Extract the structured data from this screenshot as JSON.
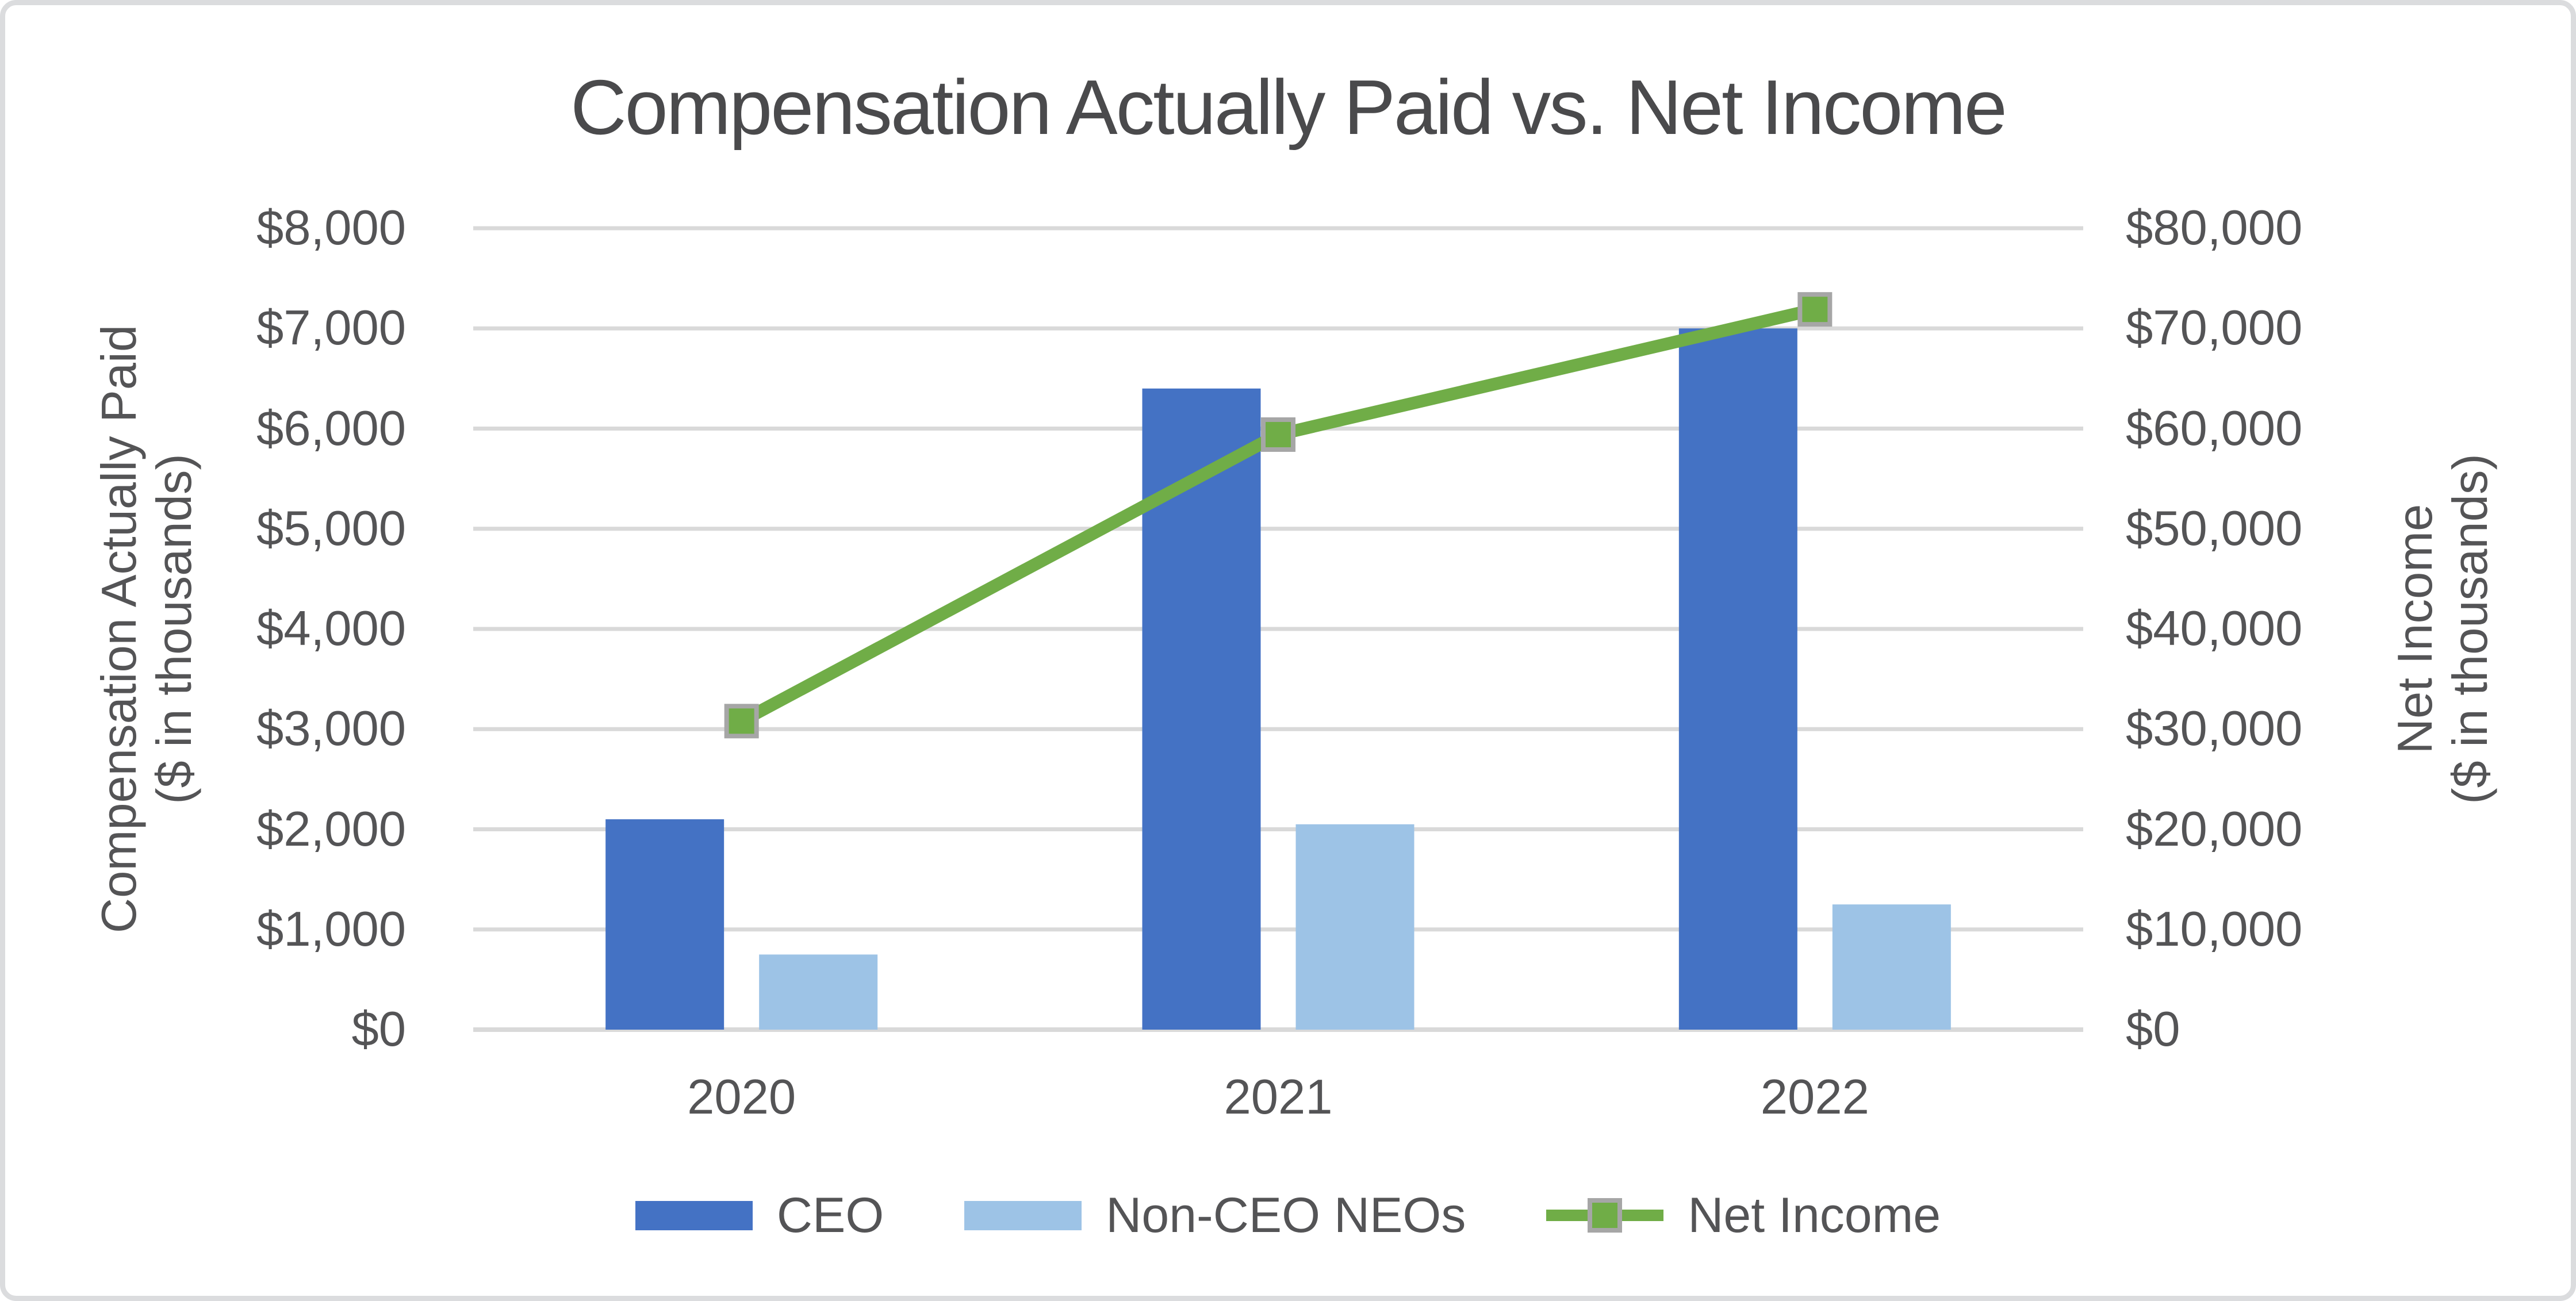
{
  "chart_data": {
    "type": "combo_bar_line",
    "title": "Compensation Actually Paid vs. Net Income",
    "categories": [
      "2020",
      "2021",
      "2022"
    ],
    "series": [
      {
        "name": "CEO",
        "chart": "bar",
        "axis": "left",
        "values": [
          2100,
          6400,
          7000
        ],
        "color": "#4472C4"
      },
      {
        "name": "Non-CEO NEOs",
        "chart": "bar",
        "axis": "left",
        "values": [
          750,
          2050,
          1250
        ],
        "color": "#9DC3E6"
      },
      {
        "name": "Net Income",
        "chart": "line",
        "axis": "right",
        "values": [
          30800,
          59400,
          71900
        ],
        "color": "#70AD47",
        "marker": "square",
        "marker_fill": "#70AD47",
        "marker_border": "#A6A6A6"
      }
    ],
    "left_axis": {
      "title_lines": [
        "Compensation Actually Paid",
        "($ in thousands)"
      ],
      "min": 0,
      "max": 8000,
      "step": 1000,
      "tick_labels": [
        "$0",
        "$1,000",
        "$2,000",
        "$3,000",
        "$4,000",
        "$5,000",
        "$6,000",
        "$7,000",
        "$8,000"
      ]
    },
    "right_axis": {
      "title_lines": [
        "Net Income",
        "($ in thousands)"
      ],
      "min": 0,
      "max": 80000,
      "step": 10000,
      "tick_labels": [
        "$0",
        "$10,000",
        "$20,000",
        "$30,000",
        "$40,000",
        "$50,000",
        "$60,000",
        "$70,000",
        "$80,000"
      ]
    },
    "legend": {
      "position": "bottom",
      "items": [
        "CEO",
        "Non-CEO NEOs",
        "Net Income"
      ]
    },
    "grid": true,
    "colors": {
      "gridline": "#D9D9D9",
      "axis_line": "#D9D9D9",
      "text": "#545456",
      "title_text": "#4A4A4C",
      "canvas_border": "#DBDCDE",
      "background": "#FFFFFF"
    }
  }
}
